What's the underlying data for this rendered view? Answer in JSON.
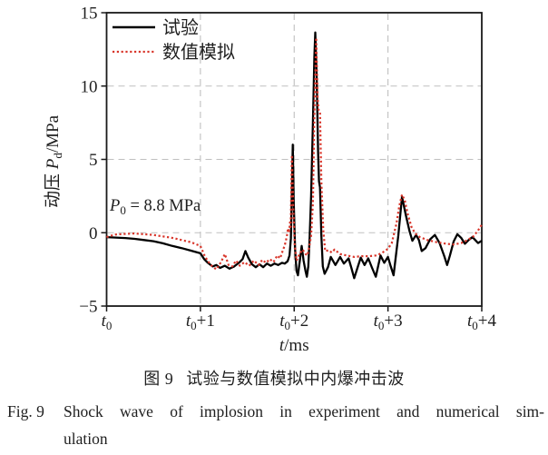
{
  "chart_data": {
    "type": "line",
    "xlim": [
      0,
      4
    ],
    "ylim": [
      -5,
      15
    ],
    "x_axis_title": {
      "var": "t",
      "unit": "/ms"
    },
    "y_axis_title": {
      "prefix": "动压 ",
      "var": "P",
      "sub": "d",
      "unit": "/MPa"
    },
    "y_ticks": [
      {
        "value": 15,
        "label": "15"
      },
      {
        "value": 10,
        "label": "10"
      },
      {
        "value": 5,
        "label": "5"
      },
      {
        "value": 0,
        "label": "0"
      },
      {
        "value": -5,
        "label": "−5"
      }
    ],
    "x_ticks": [
      {
        "main": "t",
        "sub": "0",
        "suffix": ""
      },
      {
        "main": "t",
        "sub": "0",
        "suffix": "+1"
      },
      {
        "main": "t",
        "sub": "0",
        "suffix": "+2"
      },
      {
        "main": "t",
        "sub": "0",
        "suffix": "+3"
      },
      {
        "main": "t",
        "sub": "0",
        "suffix": "+4"
      }
    ],
    "grid": {
      "horizontal_at": [
        10,
        5,
        0
      ],
      "vertical_at": [
        1,
        2,
        3
      ],
      "style": "dashed",
      "color": "#bfbfbf"
    },
    "annotation": {
      "var": "P",
      "sub": "0",
      "text": " = 8.8 MPa"
    },
    "legend": {
      "position": "top-left",
      "items": [
        {
          "name": "experiment",
          "label": "试验",
          "color": "#000000",
          "line_style": "solid"
        },
        {
          "name": "simulation",
          "label": "数值模拟",
          "color": "#d8352a",
          "line_style": "dotted"
        }
      ]
    },
    "series": [
      {
        "name": "experiment",
        "label": "试验",
        "color": "#000000",
        "style": "solid",
        "points": [
          [
            0.0,
            -0.3
          ],
          [
            0.1,
            -0.33
          ],
          [
            0.2,
            -0.36
          ],
          [
            0.3,
            -0.42
          ],
          [
            0.4,
            -0.5
          ],
          [
            0.5,
            -0.58
          ],
          [
            0.6,
            -0.72
          ],
          [
            0.7,
            -0.9
          ],
          [
            0.8,
            -1.05
          ],
          [
            0.9,
            -1.22
          ],
          [
            1.0,
            -1.4
          ],
          [
            1.04,
            -1.8
          ],
          [
            1.08,
            -2.05
          ],
          [
            1.13,
            -2.3
          ],
          [
            1.17,
            -2.2
          ],
          [
            1.21,
            -2.4
          ],
          [
            1.26,
            -2.25
          ],
          [
            1.31,
            -2.45
          ],
          [
            1.36,
            -2.3
          ],
          [
            1.41,
            -2.05
          ],
          [
            1.45,
            -1.8
          ],
          [
            1.48,
            -1.25
          ],
          [
            1.51,
            -1.7
          ],
          [
            1.55,
            -2.15
          ],
          [
            1.59,
            -2.35
          ],
          [
            1.63,
            -2.15
          ],
          [
            1.67,
            -2.35
          ],
          [
            1.71,
            -2.1
          ],
          [
            1.75,
            -2.25
          ],
          [
            1.79,
            -2.1
          ],
          [
            1.83,
            -2.2
          ],
          [
            1.87,
            -2.05
          ],
          [
            1.9,
            -2.1
          ],
          [
            1.93,
            -1.95
          ],
          [
            1.95,
            -1.55
          ],
          [
            1.965,
            -0.4
          ],
          [
            1.975,
            2.8
          ],
          [
            1.985,
            6.0
          ],
          [
            1.995,
            2.2
          ],
          [
            2.01,
            -1.2
          ],
          [
            2.025,
            -2.6
          ],
          [
            2.04,
            -2.9
          ],
          [
            2.06,
            -1.9
          ],
          [
            2.08,
            -0.9
          ],
          [
            2.1,
            -1.9
          ],
          [
            2.12,
            -2.6
          ],
          [
            2.135,
            -3.0
          ],
          [
            2.15,
            -2.3
          ],
          [
            2.165,
            -0.3
          ],
          [
            2.18,
            2.5
          ],
          [
            2.2,
            7.5
          ],
          [
            2.215,
            12.0
          ],
          [
            2.225,
            13.65
          ],
          [
            2.24,
            10.5
          ],
          [
            2.255,
            5.5
          ],
          [
            2.265,
            3.5
          ],
          [
            2.275,
            3.1
          ],
          [
            2.29,
            -0.2
          ],
          [
            2.305,
            -2.3
          ],
          [
            2.325,
            -2.8
          ],
          [
            2.36,
            -2.35
          ],
          [
            2.39,
            -1.65
          ],
          [
            2.44,
            -2.2
          ],
          [
            2.49,
            -1.65
          ],
          [
            2.53,
            -2.1
          ],
          [
            2.58,
            -1.75
          ],
          [
            2.61,
            -2.4
          ],
          [
            2.64,
            -3.1
          ],
          [
            2.68,
            -2.3
          ],
          [
            2.71,
            -1.7
          ],
          [
            2.75,
            -2.2
          ],
          [
            2.79,
            -1.75
          ],
          [
            2.83,
            -2.4
          ],
          [
            2.87,
            -3.0
          ],
          [
            2.92,
            -1.55
          ],
          [
            2.96,
            -2.05
          ],
          [
            3.0,
            -1.65
          ],
          [
            3.03,
            -2.3
          ],
          [
            3.06,
            -2.9
          ],
          [
            3.11,
            -0.2
          ],
          [
            3.15,
            2.45
          ],
          [
            3.19,
            1.2
          ],
          [
            3.23,
            0.1
          ],
          [
            3.26,
            -0.55
          ],
          [
            3.3,
            -0.15
          ],
          [
            3.33,
            -0.5
          ],
          [
            3.36,
            -1.25
          ],
          [
            3.4,
            -1.05
          ],
          [
            3.45,
            -0.45
          ],
          [
            3.5,
            -0.15
          ],
          [
            3.55,
            -0.7
          ],
          [
            3.6,
            -1.6
          ],
          [
            3.63,
            -2.2
          ],
          [
            3.66,
            -1.55
          ],
          [
            3.7,
            -0.6
          ],
          [
            3.74,
            -0.1
          ],
          [
            3.78,
            -0.35
          ],
          [
            3.82,
            -0.75
          ],
          [
            3.86,
            -0.5
          ],
          [
            3.9,
            -0.3
          ],
          [
            3.93,
            -0.5
          ],
          [
            3.96,
            -0.7
          ],
          [
            4.0,
            -0.55
          ]
        ]
      },
      {
        "name": "simulation",
        "label": "数值模拟",
        "color": "#d8352a",
        "style": "dotted",
        "points": [
          [
            0.0,
            -0.3
          ],
          [
            0.05,
            -0.2
          ],
          [
            0.1,
            -0.12
          ],
          [
            0.2,
            -0.08
          ],
          [
            0.3,
            -0.05
          ],
          [
            0.4,
            -0.1
          ],
          [
            0.5,
            -0.15
          ],
          [
            0.6,
            -0.25
          ],
          [
            0.7,
            -0.35
          ],
          [
            0.8,
            -0.5
          ],
          [
            0.9,
            -0.65
          ],
          [
            1.0,
            -0.9
          ],
          [
            1.04,
            -1.5
          ],
          [
            1.08,
            -1.95
          ],
          [
            1.12,
            -2.25
          ],
          [
            1.17,
            -2.5
          ],
          [
            1.22,
            -2.0
          ],
          [
            1.26,
            -1.45
          ],
          [
            1.3,
            -2.2
          ],
          [
            1.34,
            -2.3
          ],
          [
            1.38,
            -1.9
          ],
          [
            1.42,
            -2.25
          ],
          [
            1.47,
            -2.0
          ],
          [
            1.52,
            -2.25
          ],
          [
            1.57,
            -1.9
          ],
          [
            1.62,
            -2.2
          ],
          [
            1.66,
            -1.85
          ],
          [
            1.7,
            -2.05
          ],
          [
            1.74,
            -1.8
          ],
          [
            1.78,
            -2.0
          ],
          [
            1.82,
            -1.55
          ],
          [
            1.85,
            -1.75
          ],
          [
            1.88,
            -1.2
          ],
          [
            1.9,
            -0.85
          ],
          [
            1.92,
            -0.3
          ],
          [
            1.935,
            0.3
          ],
          [
            1.945,
            0.0
          ],
          [
            1.955,
            0.7
          ],
          [
            1.963,
            0.4
          ],
          [
            1.975,
            5.3
          ],
          [
            1.99,
            1.8
          ],
          [
            2.005,
            -0.8
          ],
          [
            2.025,
            -1.9
          ],
          [
            2.06,
            -1.4
          ],
          [
            2.09,
            -1.15
          ],
          [
            2.12,
            -1.45
          ],
          [
            2.14,
            -1.55
          ],
          [
            2.16,
            -1.0
          ],
          [
            2.18,
            -0.2
          ],
          [
            2.2,
            2.0
          ],
          [
            2.215,
            8.0
          ],
          [
            2.235,
            13.3
          ],
          [
            2.25,
            9.2
          ],
          [
            2.26,
            8.4
          ],
          [
            2.275,
            8.2
          ],
          [
            2.29,
            3.5
          ],
          [
            2.31,
            0.2
          ],
          [
            2.33,
            -1.25
          ],
          [
            2.37,
            -1.2
          ],
          [
            2.4,
            -1.35
          ],
          [
            2.43,
            -1.15
          ],
          [
            2.49,
            -1.45
          ],
          [
            2.56,
            -1.55
          ],
          [
            2.64,
            -1.65
          ],
          [
            2.72,
            -1.6
          ],
          [
            2.8,
            -1.6
          ],
          [
            2.87,
            -1.55
          ],
          [
            2.93,
            -1.4
          ],
          [
            3.0,
            -1.1
          ],
          [
            3.04,
            -0.7
          ],
          [
            3.09,
            0.6
          ],
          [
            3.12,
            1.8
          ],
          [
            3.15,
            2.6
          ],
          [
            3.18,
            2.2
          ],
          [
            3.21,
            1.3
          ],
          [
            3.25,
            0.4
          ],
          [
            3.29,
            -0.05
          ],
          [
            3.34,
            -0.3
          ],
          [
            3.42,
            -0.5
          ],
          [
            3.52,
            -0.65
          ],
          [
            3.62,
            -0.75
          ],
          [
            3.7,
            -0.8
          ],
          [
            3.78,
            -0.7
          ],
          [
            3.85,
            -0.5
          ],
          [
            3.91,
            -0.25
          ],
          [
            3.96,
            0.15
          ],
          [
            4.0,
            0.55
          ]
        ]
      }
    ]
  },
  "captions": {
    "cn_label": "图 9",
    "cn_text": "试验与数值模拟中内爆冲击波",
    "en_label": "Fig. 9",
    "en_line1": "Shock wave of implosion in experiment and numerical sim-",
    "en_line2": "ulation"
  }
}
